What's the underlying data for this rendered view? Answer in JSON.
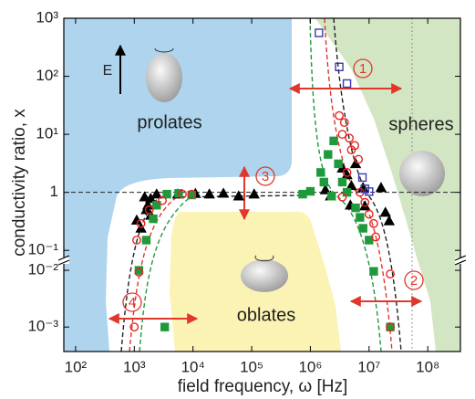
{
  "chart_data": [
    {
      "type": "scatter",
      "ylabel": "conductivity ratio, x",
      "yscale": "log",
      "ylim": [
        0.0676,
        1000
      ],
      "yticks": [
        {
          "value": 0.1,
          "label": "10⁻¹"
        },
        1,
        {
          "value": 10,
          "label": "10¹"
        },
        {
          "value": 100,
          "label": "10²"
        },
        {
          "value": 1000,
          "label": "10³"
        }
      ],
      "annotations": [
        "prolates",
        "oblates",
        "spheres",
        "E",
        "1",
        "2",
        "3",
        "4"
      ],
      "series": [
        {
          "marker": "triangle",
          "color": "#000000",
          "filled": true,
          "x": [
            1100,
            1600,
            1500,
            1900,
            2400,
            5500,
            11000,
            19000,
            33000,
            60000,
            110000,
            1900,
            1300,
            1700,
            1800000,
            2200000,
            4200000,
            5000000,
            5900000,
            3500000,
            7900000,
            8500000,
            16000000,
            19000000,
            22000000,
            4800000
          ],
          "values": [
            0.33,
            0.5,
            0.83,
            0.78,
            0.93,
            0.93,
            0.95,
            0.93,
            0.96,
            0.86,
            0.93,
            0.4,
            0.24,
            0.6,
            1.1,
            0.86,
            2,
            1.3,
            3.1,
            2.6,
            1.2,
            0.58,
            1.2,
            0.45,
            0.32,
            0.6
          ]
        },
        {
          "marker": "square",
          "color": "#1e9a3c",
          "filled": true,
          "x": [
            1600,
            2100,
            2400,
            3600,
            5700,
            9500,
            740000,
            1000000,
            1700000,
            2000000,
            2500000,
            3000000,
            3500000,
            4200000,
            5900000,
            7000000,
            7900000,
            10000000,
            2300000,
            1500000
          ],
          "values": [
            0.15,
            0.35,
            0.6,
            0.93,
            0.96,
            0.9,
            0.93,
            1.04,
            1.5,
            4.5,
            7.7,
            3.1,
            1.5,
            1,
            0.54,
            0.37,
            0.24,
            0.15,
            0.86,
            2.2
          ]
        },
        {
          "marker": "circle",
          "color": "#e8231f",
          "filled": false,
          "x": [
            1100,
            1300,
            1800,
            3000,
            6600,
            9500,
            3100000,
            3800000,
            3500000,
            4600000,
            5700000,
            6600000,
            5000000,
            4200000,
            7000000,
            8500000,
            10000000,
            12000000,
            13000000,
            3500000
          ],
          "values": [
            0.15,
            0.29,
            0.5,
            0.72,
            0.93,
            0.93,
            21,
            16,
            10,
            8.6,
            6.4,
            3.7,
            5.4,
            2.2,
            1,
            0.67,
            0.42,
            0.29,
            0.17,
            0.83
          ]
        },
        {
          "marker": "square",
          "color": "#3a3ab0",
          "filled": false,
          "x": [
            1400000,
            3100000,
            4200000,
            7700000,
            8500000,
            10000000
          ],
          "values": [
            560,
            145,
            75,
            1.8,
            1.15,
            1.03
          ]
        }
      ]
    },
    {
      "type": "scatter",
      "xlabel": "field frequency, ω [Hz]",
      "xscale": "log",
      "yscale": "log",
      "xlim": [
        63,
        360000000
      ],
      "xticks": [
        {
          "value": 100,
          "label": "10²"
        },
        {
          "value": 1000,
          "label": "10³"
        },
        {
          "value": 10000,
          "label": "10⁴"
        },
        {
          "value": 100000,
          "label": "10⁵"
        },
        {
          "value": 1000000,
          "label": "10⁶"
        },
        {
          "value": 10000000,
          "label": "10⁷"
        },
        {
          "value": 100000000,
          "label": "10⁸"
        }
      ],
      "ylim": [
        0.00037,
        0.014
      ],
      "yticks": [
        {
          "value": 0.01,
          "label": "10⁻²"
        },
        {
          "value": 0.001,
          "label": "10⁻³"
        }
      ],
      "series": [
        {
          "marker": "square",
          "color": "#1e9a3c",
          "filled": true,
          "x": [
            3300,
            1200,
            12000000,
            23000000
          ],
          "values": [
            0.001,
            0.01,
            0.0096,
            0.001
          ]
        },
        {
          "marker": "circle",
          "color": "#e8231f",
          "filled": false,
          "x": [
            1000,
            1200,
            23000000,
            23000000
          ],
          "values": [
            0.001,
            0.0093,
            0.0086,
            0.001
          ]
        }
      ]
    }
  ]
}
